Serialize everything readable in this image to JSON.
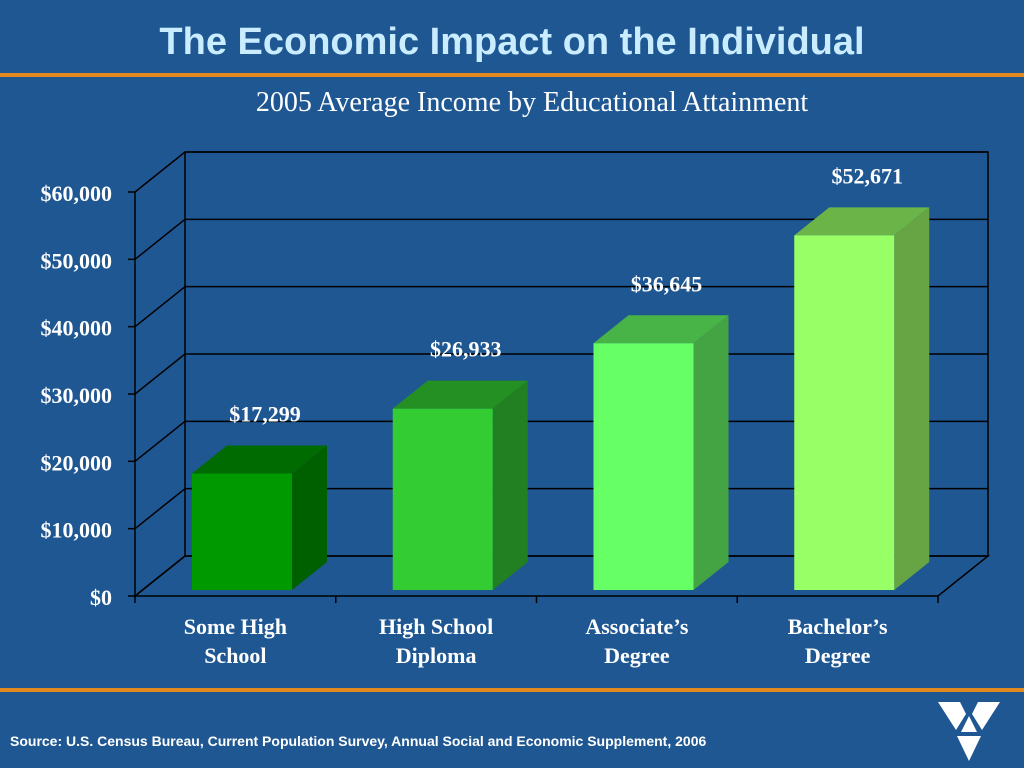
{
  "slide": {
    "title": "The Economic Impact on the Individual",
    "source": "Source: U.S. Census Bureau, Current Population Survey, Annual Social and Economic Supplement, 2006"
  },
  "colors": {
    "background": "#1f5792",
    "title": "#c9ecff",
    "rule": "#e08a20",
    "bar_fronts": [
      "#009900",
      "#33cc33",
      "#66ff66",
      "#99ff66"
    ],
    "bar_tops": [
      "#006b00",
      "#249024",
      "#48b448",
      "#6bb448"
    ],
    "bar_sides": [
      "#006000",
      "#228022",
      "#44a444",
      "#66a444"
    ]
  },
  "chart_data": {
    "type": "bar",
    "title": "2005 Average Income by Educational Attainment",
    "categories": [
      "Some High School",
      "High School Diploma",
      "Associate’s Degree",
      "Bachelor’s Degree"
    ],
    "category_lines": [
      [
        "Some High",
        "School"
      ],
      [
        "High School",
        "Diploma"
      ],
      [
        "Associate’s",
        "Degree"
      ],
      [
        "Bachelor’s",
        "Degree"
      ]
    ],
    "values": [
      17299,
      26933,
      36645,
      52671
    ],
    "data_labels": [
      "$17,299",
      "$26,933",
      "$36,645",
      "$52,671"
    ],
    "ylim": [
      0,
      60000
    ],
    "ytick_values": [
      0,
      10000,
      20000,
      30000,
      40000,
      50000,
      60000
    ],
    "ytick_labels": [
      "$0",
      "$10,000",
      "$20,000",
      "$30,000",
      "$40,000",
      "$50,000",
      "$60,000"
    ],
    "xlabel": "",
    "ylabel": "",
    "grid": true,
    "three_d": true
  }
}
